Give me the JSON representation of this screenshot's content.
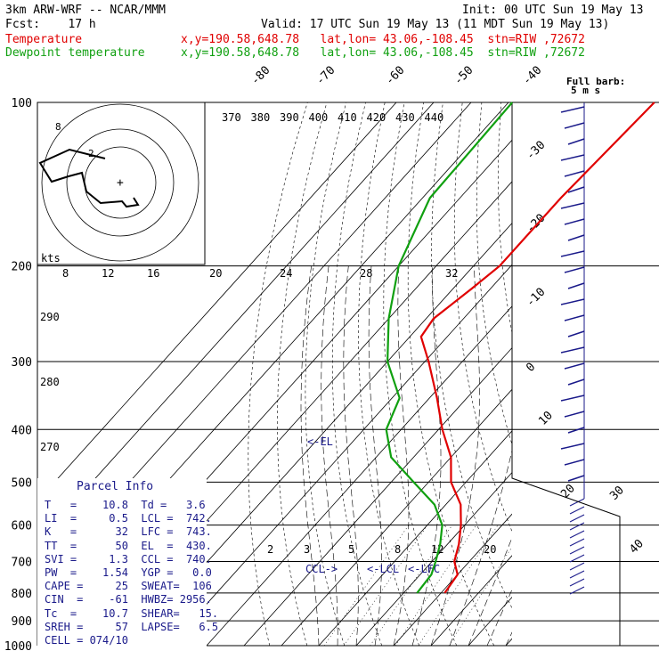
{
  "header": {
    "model": "3km ARW-WRF -- NCAR/MMM",
    "init": "Init: 00 UTC Sun 19 May 13",
    "fcst": "Fcst:    17 h",
    "valid": "Valid: 17 UTC Sun 19 May 13 (11 MDT Sun 19 May 13)",
    "temp_label": "Temperature",
    "temp_info": "x,y=190.58,648.78   lat,lon= 43.06,-108.45  stn=RIW ,72672",
    "dew_label": "Dewpoint temperature",
    "dew_info": "x,y=190.58,648.78   lat,lon= 43.06,-108.45  stn=RIW ,72672"
  },
  "parcel_info": {
    "title": "Parcel Info",
    "lines": [
      "T   =    10.8  Td =   3.6",
      "LI  =     0.5  LCL =  742.",
      "K   =      32  LFC =  743.",
      "TT  =      50  EL  =  430.",
      "SVI =     1.3  CCL =  740.",
      "PW  =    1.54  YGP =   0.0",
      "CAPE =     25  SWEAT=  106",
      "CIN  =    -61  HWBZ= 2956.",
      "Tc  =    10.7  SHEAR=   15.",
      "SREH =     57  LAPSE=   6.5",
      "CELL = 074/10"
    ]
  },
  "chart_data": {
    "type": "line",
    "diagram": "skew-T log-p",
    "yaxis": {
      "label": "Pressure (hPa)",
      "log": true,
      "ylim": [
        1000,
        100
      ],
      "ticks": [
        100,
        200,
        300,
        400,
        500,
        600,
        700,
        800,
        900,
        1000
      ]
    },
    "isotherm_labels": [
      "-80",
      "-70",
      "-60",
      "-50",
      "-40",
      "-30",
      "-20",
      "-10",
      "0",
      "10",
      "20",
      "30",
      "40"
    ],
    "theta_labels": [
      "370",
      "380",
      "390",
      "400",
      "410",
      "420",
      "430",
      "440",
      "290",
      "280",
      "270"
    ],
    "mixing_ratio_labels": [
      "2",
      "3",
      "5",
      "8",
      "12",
      "20"
    ],
    "hodograph": {
      "units_label": "kts",
      "ring_labels": [
        "8",
        "12",
        "16",
        "20",
        "24",
        "28",
        "32"
      ]
    },
    "wind_key": [
      "Full barb:",
      "5 m s"
    ],
    "annotations": [
      "<-EL",
      "CCL->",
      "<-LCL",
      "<-LFC"
    ],
    "series": [
      {
        "name": "Temperature",
        "color": "#e00000",
        "points": [
          [
            100,
            -51
          ],
          [
            150,
            -53
          ],
          [
            200,
            -53
          ],
          [
            220,
            -55
          ],
          [
            250,
            -58
          ],
          [
            270,
            -57
          ],
          [
            300,
            -49
          ],
          [
            350,
            -38
          ],
          [
            400,
            -29
          ],
          [
            450,
            -20
          ],
          [
            500,
            -14
          ],
          [
            550,
            -6
          ],
          [
            600,
            -1
          ],
          [
            650,
            3
          ],
          [
            700,
            6
          ],
          [
            740,
            10
          ],
          [
            800,
            11
          ]
        ]
      },
      {
        "name": "Dewpoint temperature",
        "color": "#10a010",
        "points": [
          [
            100,
            -89
          ],
          [
            150,
            -88
          ],
          [
            200,
            -80
          ],
          [
            250,
            -70
          ],
          [
            300,
            -60
          ],
          [
            350,
            -48
          ],
          [
            400,
            -44
          ],
          [
            450,
            -36
          ],
          [
            500,
            -24
          ],
          [
            550,
            -13
          ],
          [
            600,
            -6
          ],
          [
            650,
            -2
          ],
          [
            700,
            1
          ],
          [
            740,
            3
          ],
          [
            800,
            3.6
          ]
        ]
      }
    ]
  }
}
